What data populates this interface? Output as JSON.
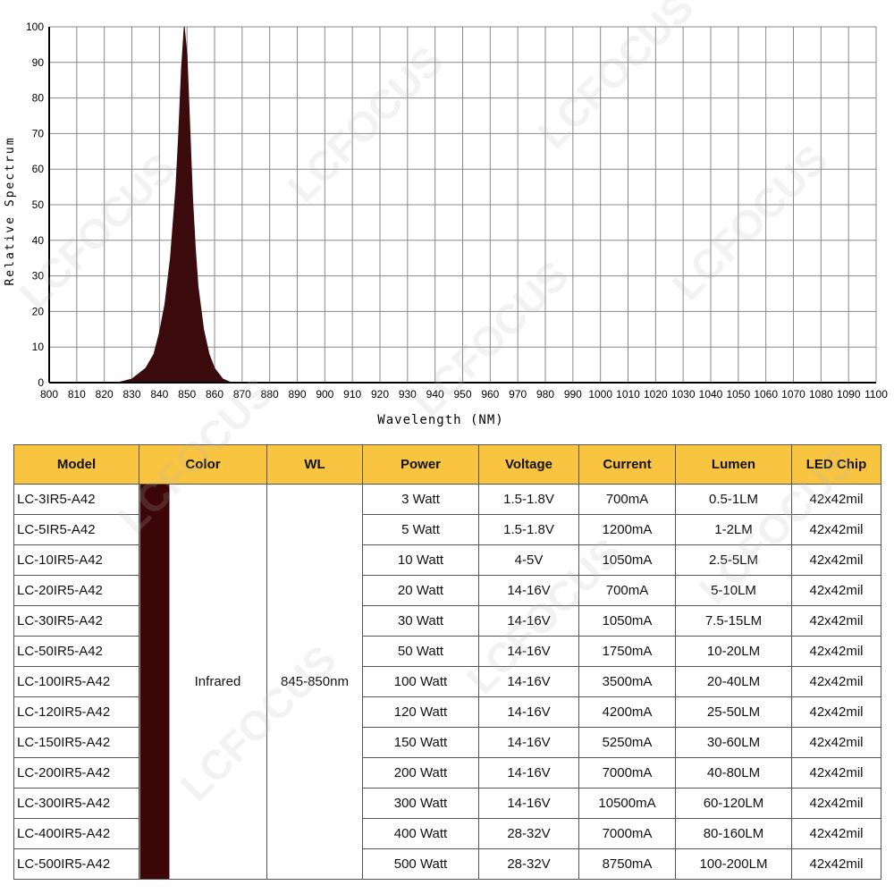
{
  "chart_data": {
    "type": "area",
    "color": "#3b0a0c",
    "grid": true,
    "xlabel": "Wavelength (NM)",
    "ylabel": "Relative Spectrum",
    "xlim": [
      800,
      1100
    ],
    "ylim": [
      0,
      100
    ],
    "xticks": [
      800,
      810,
      820,
      830,
      840,
      850,
      860,
      870,
      880,
      890,
      900,
      910,
      920,
      930,
      940,
      950,
      960,
      970,
      980,
      990,
      1000,
      1010,
      1020,
      1030,
      1040,
      1050,
      1060,
      1070,
      1080,
      1090,
      1100
    ],
    "yticks": [
      0,
      10,
      20,
      30,
      40,
      50,
      60,
      70,
      80,
      90,
      100
    ],
    "x": [
      825,
      830,
      835,
      838,
      840,
      842,
      844,
      846,
      847,
      848,
      849,
      850,
      851,
      852,
      853,
      854,
      856,
      858,
      860,
      863,
      866
    ],
    "values": [
      0,
      1,
      4,
      8,
      14,
      22,
      35,
      55,
      70,
      88,
      100,
      92,
      72,
      52,
      38,
      27,
      15,
      8,
      4,
      1,
      0
    ]
  },
  "watermark": "LCFOCUS",
  "table": {
    "headers": [
      "Model",
      "Color",
      "WL",
      "Power",
      "Voltage",
      "Current",
      "Lumen",
      "LED Chip"
    ],
    "header_color": "#f9c43f",
    "swatch_color": "#3c0508",
    "color": "Infrared",
    "wl": "845-850nm",
    "rows": [
      [
        "LC-3IR5-A42",
        "3 Watt",
        "1.5-1.8V",
        "700mA",
        "0.5-1LM",
        "42x42mil"
      ],
      [
        "LC-5IR5-A42",
        "5 Watt",
        "1.5-1.8V",
        "1200mA",
        "1-2LM",
        "42x42mil"
      ],
      [
        "LC-10IR5-A42",
        "10 Watt",
        "4-5V",
        "1050mA",
        "2.5-5LM",
        "42x42mil"
      ],
      [
        "LC-20IR5-A42",
        "20 Watt",
        "14-16V",
        "700mA",
        "5-10LM",
        "42x42mil"
      ],
      [
        "LC-30IR5-A42",
        "30 Watt",
        "14-16V",
        "1050mA",
        "7.5-15LM",
        "42x42mil"
      ],
      [
        "LC-50IR5-A42",
        "50 Watt",
        "14-16V",
        "1750mA",
        "10-20LM",
        "42x42mil"
      ],
      [
        "LC-100IR5-A42",
        "100 Watt",
        "14-16V",
        "3500mA",
        "20-40LM",
        "42x42mil"
      ],
      [
        "LC-120IR5-A42",
        "120 Watt",
        "14-16V",
        "4200mA",
        "25-50LM",
        "42x42mil"
      ],
      [
        "LC-150IR5-A42",
        "150 Watt",
        "14-16V",
        "5250mA",
        "30-60LM",
        "42x42mil"
      ],
      [
        "LC-200IR5-A42",
        "200 Watt",
        "14-16V",
        "7000mA",
        "40-80LM",
        "42x42mil"
      ],
      [
        "LC-300IR5-A42",
        "300 Watt",
        "14-16V",
        "10500mA",
        "60-120LM",
        "42x42mil"
      ],
      [
        "LC-400IR5-A42",
        "400 Watt",
        "28-32V",
        "7000mA",
        "80-160LM",
        "42x42mil"
      ],
      [
        "LC-500IR5-A42",
        "500 Watt",
        "28-32V",
        "8750mA",
        "100-200LM",
        "42x42mil"
      ]
    ]
  }
}
